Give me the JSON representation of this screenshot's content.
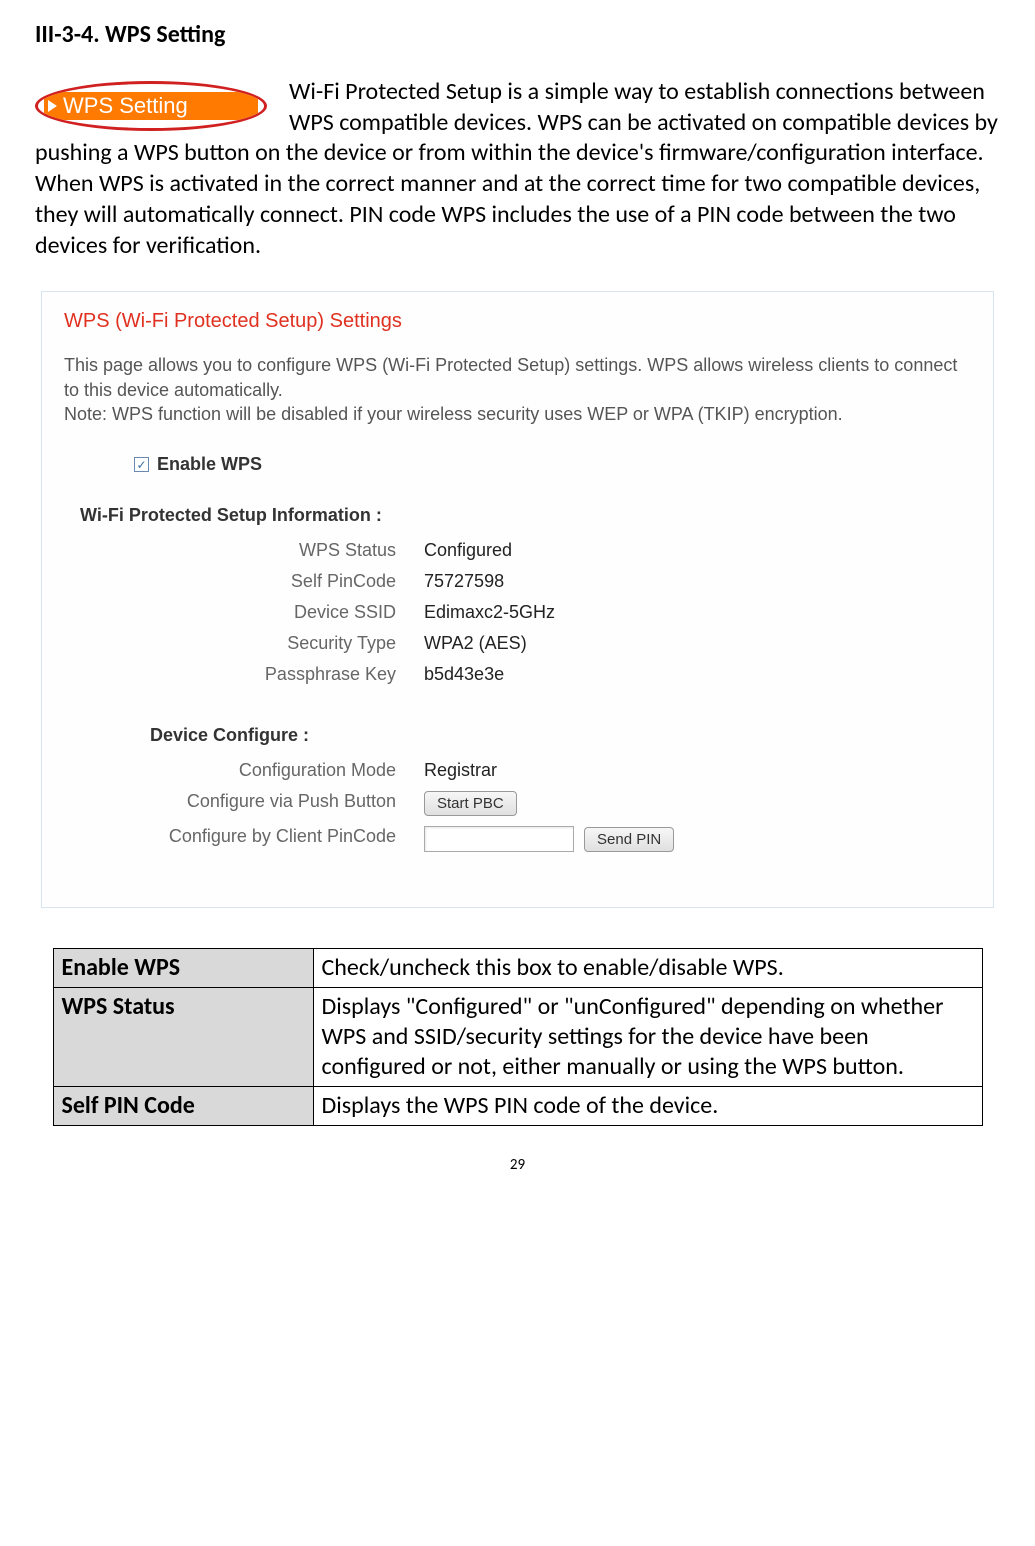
{
  "heading": "III-3-4.       WPS Setting",
  "tab_label": "WPS Setting",
  "intro_text": "Wi-Fi Protected Setup is a simple way to establish connections between WPS compatible devices. WPS can be activated on compatible devices by pushing a WPS button on the device or from within the device's firmware/configuration interface. When WPS is activated in the correct manner and at the correct time for two compatible devices, they will automatically connect. PIN code WPS includes the use of a PIN code between the two devices for verification.",
  "panel": {
    "title": "WPS (Wi-Fi Protected Setup) Settings",
    "desc": "This page allows you to configure WPS (Wi-Fi Protected Setup) settings. WPS allows wireless clients to connect to this device automatically.\nNote: WPS function will be disabled if your wireless security uses WEP or WPA (TKIP) encryption.",
    "enable_label": "Enable WPS",
    "enable_checked": true,
    "info_title": "Wi-Fi Protected Setup Information  :",
    "info_rows": [
      {
        "k": "WPS Status",
        "v": "Configured"
      },
      {
        "k": "Self PinCode",
        "v": "75727598"
      },
      {
        "k": "Device SSID",
        "v": "Edimaxc2-5GHz"
      },
      {
        "k": "Security Type",
        "v": "WPA2 (AES)"
      },
      {
        "k": "Passphrase Key",
        "v": "b5d43e3e"
      }
    ],
    "config_title": "Device Configure  :",
    "config_mode_k": "Configuration Mode",
    "config_mode_v": "Registrar",
    "push_k": "Configure via Push Button",
    "push_btn": "Start PBC",
    "pin_k": "Configure by Client PinCode",
    "pin_btn": "Send PIN"
  },
  "table_rows": [
    {
      "term": "Enable WPS",
      "desc": "Check/uncheck this box to enable/disable WPS."
    },
    {
      "term": "WPS Status",
      "desc": "Displays \"Configured\" or \"unConfigured\" depending on whether WPS and SSID/security settings for the device have been configured or not, either manually or using the WPS button."
    },
    {
      "term": "Self PIN Code",
      "desc": "Displays the WPS PIN code of the device."
    }
  ],
  "page_number": "29"
}
